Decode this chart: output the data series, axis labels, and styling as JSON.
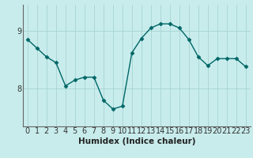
{
  "x": [
    0,
    1,
    2,
    3,
    4,
    5,
    6,
    7,
    8,
    9,
    10,
    11,
    12,
    13,
    14,
    15,
    16,
    17,
    18,
    19,
    20,
    21,
    22,
    23
  ],
  "y": [
    8.85,
    8.7,
    8.55,
    8.45,
    8.05,
    8.15,
    8.2,
    8.2,
    7.8,
    7.65,
    7.7,
    8.62,
    8.87,
    9.05,
    9.12,
    9.12,
    9.05,
    8.85,
    8.55,
    8.4,
    8.52,
    8.52,
    8.52,
    8.38
  ],
  "line_color": "#006666",
  "marker": "D",
  "markersize": 2.5,
  "linewidth": 1.0,
  "background_color": "#c8ecec",
  "grid_color_v": "#a8d4d4",
  "grid_color_h": "#a8d4d4",
  "xlabel": "Humidex (Indice chaleur)",
  "xlabel_fontsize": 7.5,
  "yticks": [
    8,
    9
  ],
  "xticks": [
    0,
    1,
    2,
    3,
    4,
    5,
    6,
    7,
    8,
    9,
    10,
    11,
    12,
    13,
    14,
    15,
    16,
    17,
    18,
    19,
    20,
    21,
    22,
    23
  ],
  "ylim": [
    7.35,
    9.45
  ],
  "xlim": [
    -0.5,
    23.5
  ],
  "tick_fontsize": 7,
  "spine_color": "#666666"
}
